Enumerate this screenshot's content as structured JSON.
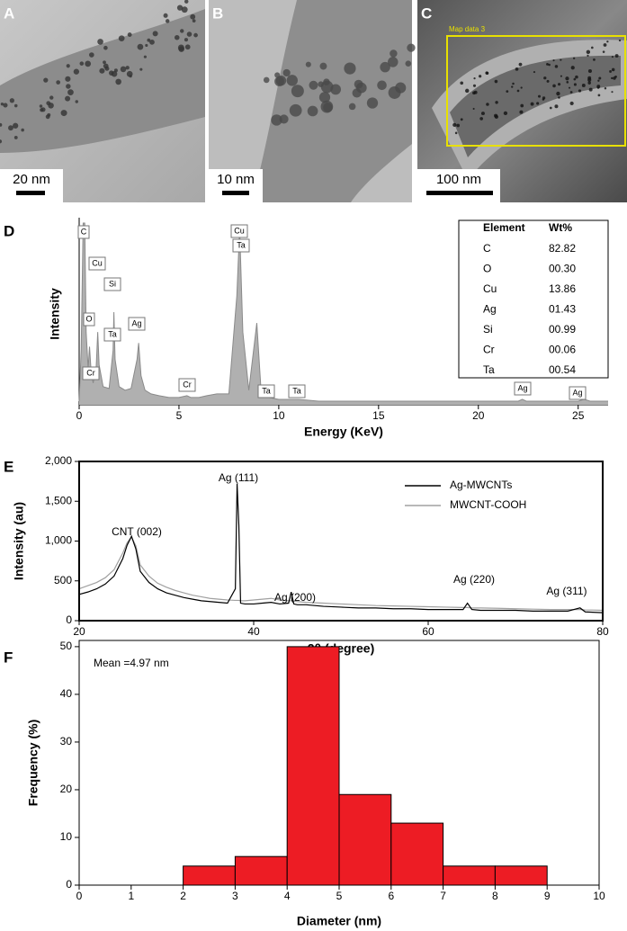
{
  "panels": [
    {
      "label": "A",
      "scale_bar": "20 nm"
    },
    {
      "label": "B",
      "scale_bar": "10 nm"
    },
    {
      "label": "C",
      "scale_bar": "100 nm",
      "box_label": "Map data 3"
    }
  ],
  "chart_data": [
    {
      "type": "area",
      "label": "D",
      "ylabel": "Intensity",
      "xlabel": "Energy (KeV)",
      "color": "#b0b0b0",
      "x": [
        0,
        0.1,
        0.2,
        0.28,
        0.35,
        0.45,
        0.52,
        0.6,
        0.7,
        0.85,
        0.93,
        1.0,
        1.2,
        1.5,
        1.7,
        1.74,
        1.8,
        2.0,
        2.3,
        2.6,
        2.9,
        2.98,
        3.1,
        3.3,
        3.6,
        4,
        4.5,
        5,
        5.4,
        5.6,
        6,
        6.4,
        6.9,
        7.5,
        7.9,
        8.04,
        8.2,
        8.5,
        8.9,
        9.1,
        9.5,
        10,
        11,
        12,
        14,
        16,
        18,
        20,
        22,
        22.2,
        22.4,
        24,
        25,
        25.3,
        25.6,
        26.5
      ],
      "values": [
        2,
        30,
        100,
        100,
        40,
        20,
        32,
        18,
        12,
        20,
        40,
        22,
        10,
        9,
        30,
        51,
        25,
        10,
        8,
        9,
        25,
        34,
        16,
        8,
        6,
        5,
        4,
        4,
        5,
        4,
        4,
        5,
        6,
        6,
        60,
        97,
        40,
        8,
        45,
        10,
        4,
        3,
        3,
        2,
        2,
        2,
        2,
        2,
        2,
        3,
        2,
        2,
        2,
        3,
        2,
        2
      ],
      "xlim": [
        0,
        26.5
      ],
      "xticks": [
        0,
        5,
        10,
        15,
        20,
        25
      ],
      "ylim": [
        0,
        100
      ],
      "annotations": [
        "C",
        "Cu",
        "Si",
        "O",
        "Ta",
        "Ag",
        "Cr",
        "Cr",
        "Cu",
        "Ta",
        "Ta",
        "Ta",
        "Ag",
        "Ag"
      ],
      "table": {
        "columns": [
          "Element",
          "Wt%"
        ],
        "rows": [
          [
            "C",
            "82.82"
          ],
          [
            "O",
            "00.30"
          ],
          [
            "Cu",
            "13.86"
          ],
          [
            "Ag",
            "01.43"
          ],
          [
            "Si",
            "00.99"
          ],
          [
            "Cr",
            "00.06"
          ],
          [
            "Ta",
            "00.54"
          ]
        ]
      }
    },
    {
      "type": "line",
      "label": "E",
      "ylabel": "Intensity (au)",
      "xlabel": "2θ (degree)",
      "x": [
        20,
        21,
        22,
        23,
        24,
        25,
        25.5,
        26,
        26.5,
        27,
        28,
        29,
        30,
        31,
        32,
        33,
        34,
        35,
        36,
        37,
        37.9,
        38.1,
        38.3,
        38.5,
        39,
        40,
        41,
        42,
        43,
        44,
        44.3,
        44.6,
        45,
        46,
        48,
        50,
        52,
        54,
        56,
        58,
        60,
        62,
        64,
        64.5,
        65,
        66,
        68,
        70,
        72,
        74,
        76,
        77.4,
        78,
        80
      ],
      "series": [
        {
          "name": "Ag-MWCNTs",
          "color": "#000000",
          "values": [
            330,
            360,
            400,
            460,
            560,
            780,
            950,
            1060,
            900,
            620,
            480,
            400,
            350,
            320,
            290,
            270,
            250,
            240,
            230,
            220,
            400,
            1720,
            1200,
            220,
            210,
            210,
            220,
            230,
            210,
            220,
            360,
            210,
            200,
            200,
            180,
            170,
            160,
            160,
            150,
            150,
            140,
            140,
            140,
            220,
            140,
            130,
            130,
            130,
            120,
            120,
            120,
            160,
            110,
            100
          ]
        },
        {
          "name": "MWCNT-COOH",
          "color": "#a0a0a0",
          "values": [
            400,
            440,
            480,
            540,
            640,
            850,
            980,
            1050,
            940,
            700,
            560,
            470,
            420,
            380,
            350,
            320,
            300,
            280,
            270,
            260,
            255,
            255,
            255,
            250,
            250,
            260,
            270,
            280,
            260,
            250,
            250,
            245,
            240,
            230,
            220,
            210,
            200,
            190,
            185,
            180,
            175,
            170,
            165,
            165,
            160,
            160,
            155,
            150,
            145,
            140,
            140,
            140,
            135,
            130
          ]
        }
      ],
      "xlim": [
        20,
        80
      ],
      "xticks": [
        20,
        40,
        60,
        80
      ],
      "ylim": [
        0,
        2000
      ],
      "yticks": [
        0,
        500,
        {
          "value": 1000,
          "label": "1,000"
        },
        {
          "value": 1500,
          "label": "1,500"
        },
        {
          "value": 2000,
          "label": "2,000"
        }
      ],
      "legend": "upper right",
      "annotations": [
        "CNT (002)",
        "Ag (111)",
        "Ag (200)",
        "Ag (220)",
        "Ag (311)"
      ]
    },
    {
      "type": "histogram",
      "label": "F",
      "ylabel": "Frequency (%)",
      "xlabel": "Diameter (nm)",
      "annotation": "Mean =4.97 nm",
      "color": "#ed1c24",
      "bins": [
        2,
        3,
        4,
        5,
        6,
        7,
        8,
        9
      ],
      "counts": [
        4,
        6,
        50,
        19,
        13,
        4,
        4
      ],
      "xlim": [
        0,
        10
      ],
      "xticks": [
        0,
        1,
        2,
        3,
        4,
        5,
        6,
        7,
        8,
        9,
        10
      ],
      "ylim": [
        0,
        51.3
      ],
      "yticks": [
        0,
        10,
        20,
        30,
        40,
        50
      ]
    }
  ]
}
